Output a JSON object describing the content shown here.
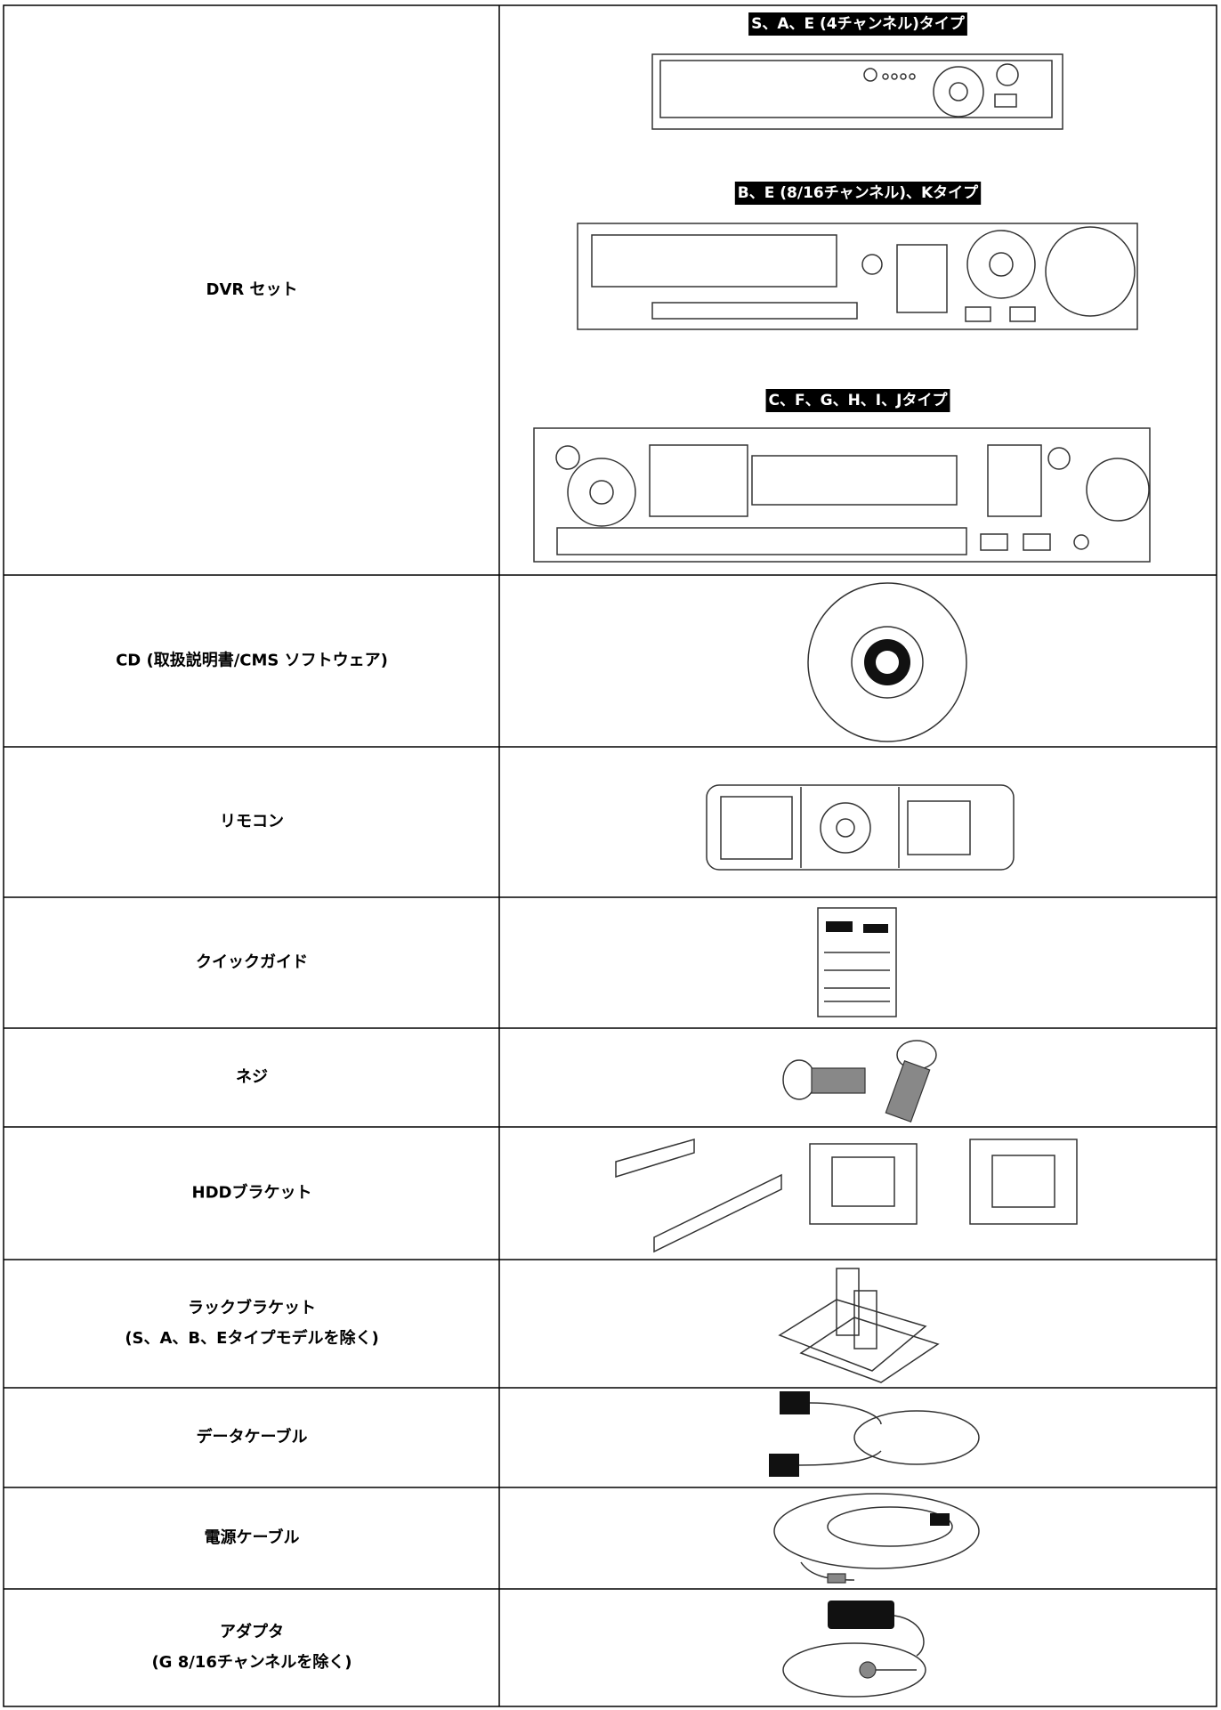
{
  "table": {
    "rows": [
      {
        "item": [
          "DVR セット"
        ],
        "captions": [
          "S、A、E (4チャンネル)タイプ",
          "B、E (8/16チャンネル)、Kタイプ",
          "C、F、G、H、I、Jタイプ"
        ]
      },
      {
        "item": [
          "CD (取扱説明書/CMS ソフトウェア)"
        ]
      },
      {
        "item": [
          "リモコン"
        ]
      },
      {
        "item": [
          "クイックガイド"
        ]
      },
      {
        "item": [
          "ネジ"
        ]
      },
      {
        "item": [
          "HDDブラケット"
        ]
      },
      {
        "item": [
          "ラックブラケット",
          "(S、A、B、Eタイプモデルを除く)"
        ]
      },
      {
        "item": [
          "データケーブル"
        ]
      },
      {
        "item": [
          "電源ケーブル"
        ]
      },
      {
        "item": [
          "アダプタ",
          "(G 8/16チャンネルを除く)"
        ]
      }
    ]
  }
}
